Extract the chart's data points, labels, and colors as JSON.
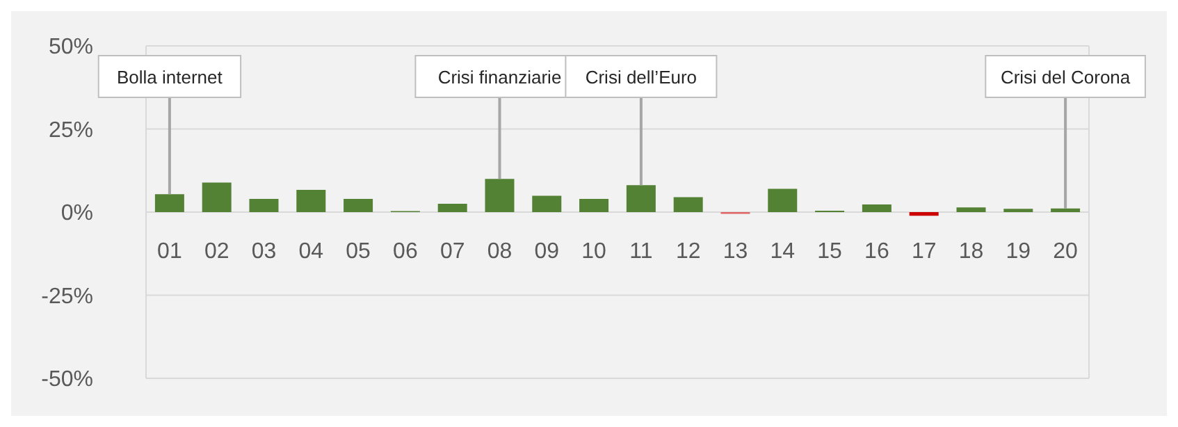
{
  "chart_data": {
    "type": "bar",
    "categories": [
      "01",
      "02",
      "03",
      "04",
      "05",
      "06",
      "07",
      "08",
      "09",
      "10",
      "11",
      "12",
      "13",
      "14",
      "15",
      "16",
      "17",
      "18",
      "19",
      "20"
    ],
    "values": [
      5.4,
      8.9,
      4.0,
      6.7,
      4.0,
      0.3,
      2.5,
      10.0,
      4.9,
      4.0,
      8.1,
      4.5,
      -0.5,
      7.0,
      0.4,
      2.3,
      -1.1,
      1.4,
      1.0,
      1.1
    ],
    "colors": [
      "#548235",
      "#548235",
      "#548235",
      "#548235",
      "#548235",
      "#548235",
      "#548235",
      "#548235",
      "#548235",
      "#548235",
      "#548235",
      "#548235",
      "#e06666",
      "#548235",
      "#548235",
      "#548235",
      "#cc0000",
      "#548235",
      "#548235",
      "#548235"
    ],
    "ylim": [
      -50,
      50
    ],
    "yticks": [
      {
        "value": -50,
        "label": "-50%"
      },
      {
        "value": -25,
        "label": "-25%"
      },
      {
        "value": 0,
        "label": "0%"
      },
      {
        "value": 25,
        "label": "25%"
      },
      {
        "value": 50,
        "label": "50%"
      }
    ],
    "grid": "y",
    "annotations": [
      {
        "text": "Bolla internet",
        "x": "01",
        "y": 5.4
      },
      {
        "text": "Crisi finanziarie",
        "x": "08",
        "y": 10.0
      },
      {
        "text": "Crisi dell’Euro",
        "x": "11",
        "y": 8.1
      },
      {
        "text": "Crisi del Corona",
        "x": "20",
        "y": 1.1
      }
    ]
  }
}
